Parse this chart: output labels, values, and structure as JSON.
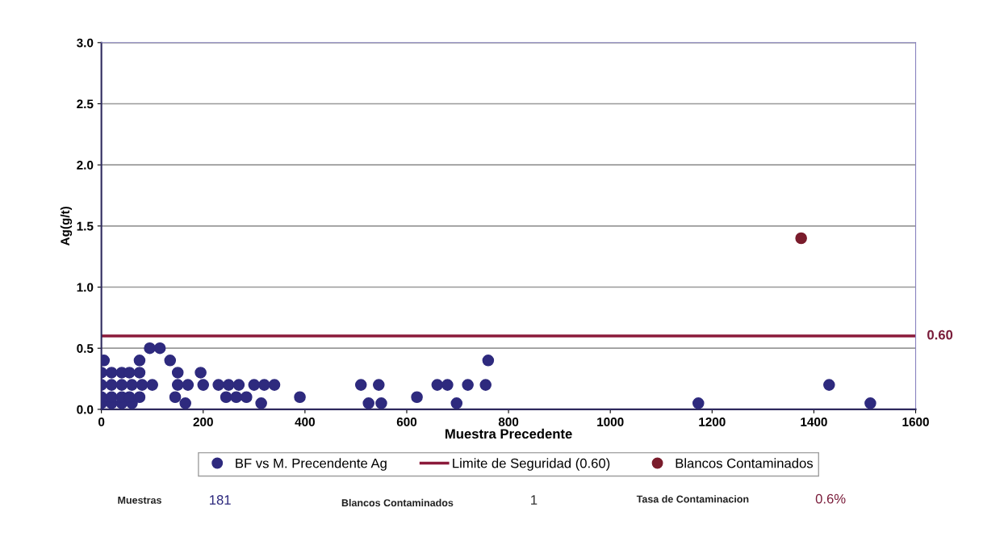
{
  "chart_data": {
    "type": "scatter",
    "xlabel": "Muestra Precedente",
    "ylabel": "Ag(g/t)",
    "xlim": [
      0,
      1600
    ],
    "xticks": [
      0,
      200,
      400,
      600,
      800,
      1000,
      1200,
      1400,
      1600
    ],
    "ylim": [
      0,
      3.0
    ],
    "yticks": [
      {
        "value": 0,
        "label": "0.0"
      },
      {
        "value": 0.5,
        "label": "0.5"
      },
      {
        "value": 1,
        "label": "1.0"
      },
      {
        "value": 1.5,
        "label": "1.5"
      },
      {
        "value": 2,
        "label": "2.0"
      },
      {
        "value": 2.5,
        "label": "2.5"
      },
      {
        "value": 3,
        "label": "3.0"
      }
    ],
    "grid": "y",
    "legend": "bottom",
    "series": [
      {
        "name": "BF vs M. Precendente Ag",
        "color": "#2e2a7e",
        "marker": "circle",
        "x": [
          0,
          20,
          40,
          60,
          0,
          20,
          40,
          55,
          75,
          145,
          245,
          265,
          285,
          390,
          620,
          0,
          20,
          40,
          60,
          80,
          100,
          150,
          170,
          200,
          230,
          250,
          270,
          300,
          320,
          340,
          510,
          545,
          660,
          680,
          720,
          755,
          1430,
          0,
          20,
          40,
          55,
          75,
          150,
          195,
          5,
          75,
          135,
          760,
          95,
          115,
          165,
          314,
          525,
          550,
          698,
          1173,
          1511
        ],
        "values": [
          0.05,
          0.05,
          0.05,
          0.05,
          0.1,
          0.1,
          0.1,
          0.1,
          0.1,
          0.1,
          0.1,
          0.1,
          0.1,
          0.1,
          0.1,
          0.2,
          0.2,
          0.2,
          0.2,
          0.2,
          0.2,
          0.2,
          0.2,
          0.2,
          0.2,
          0.2,
          0.2,
          0.2,
          0.2,
          0.2,
          0.2,
          0.2,
          0.2,
          0.2,
          0.2,
          0.2,
          0.2,
          0.3,
          0.3,
          0.3,
          0.3,
          0.3,
          0.3,
          0.3,
          0.4,
          0.4,
          0.4,
          0.4,
          0.5,
          0.5,
          0.05,
          0.05,
          0.05,
          0.05,
          0.05,
          0.05,
          0.05
        ]
      },
      {
        "name": "Limite de Seguridad (0.60)",
        "color": "#8b1a3a",
        "type": "line",
        "line_style": "solid",
        "x": [
          0,
          1600
        ],
        "values": [
          0.6,
          0.6
        ]
      },
      {
        "name": "Blancos Contaminados",
        "color": "#7a1c2c",
        "marker": "circle",
        "x": [
          1375
        ],
        "values": [
          1.4
        ]
      }
    ],
    "annotations": [
      {
        "text": "0.60",
        "x": 1600,
        "y": 0.6
      },
      "Muestras",
      "181",
      "Blancos Contaminados",
      "1",
      "Tasa de Contaminacion",
      "0.6%"
    ]
  }
}
